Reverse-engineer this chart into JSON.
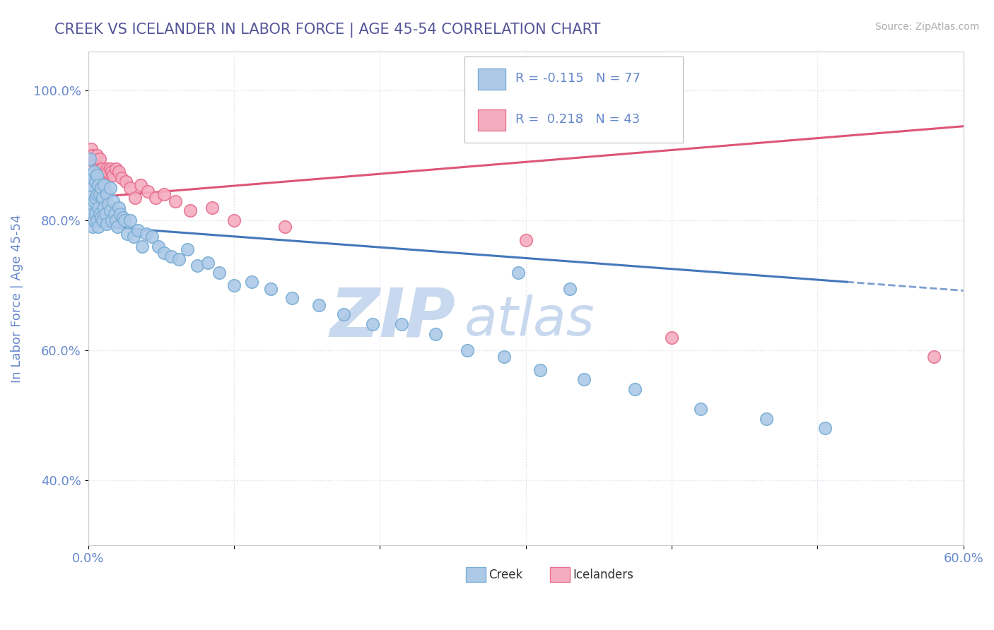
{
  "title": "CREEK VS ICELANDER IN LABOR FORCE | AGE 45-54 CORRELATION CHART",
  "source": "Source: ZipAtlas.com",
  "ylabel": "In Labor Force | Age 45-54",
  "xlim": [
    0.0,
    0.6
  ],
  "ylim": [
    0.3,
    1.06
  ],
  "xticks": [
    0.0,
    0.1,
    0.2,
    0.3,
    0.4,
    0.5,
    0.6
  ],
  "xticklabels": [
    "0.0%",
    "",
    "",
    "",
    "",
    "",
    "60.0%"
  ],
  "yticks": [
    0.4,
    0.6,
    0.8,
    1.0
  ],
  "yticklabels": [
    "40.0%",
    "60.0%",
    "80.0%",
    "100.0%"
  ],
  "creek_color": "#adc9e8",
  "icelander_color": "#f4adc0",
  "creek_edge": "#7aafd4",
  "icelander_edge": "#e87090",
  "trend_creek_color": "#4477bb",
  "trend_icelander_color": "#dd5577",
  "background_color": "#ffffff",
  "title_color": "#555599",
  "axis_color": "#6688cc",
  "grid_color": "#ddddee",
  "watermark_zip_color": "#c8d8ee",
  "watermark_atlas_color": "#c8d8ee",
  "creek_trend_y0": 0.792,
  "creek_trend_y1": 0.692,
  "icel_trend_y0": 0.835,
  "icel_trend_y1": 0.945,
  "creek_x": [
    0.001,
    0.001,
    0.002,
    0.002,
    0.002,
    0.003,
    0.003,
    0.003,
    0.004,
    0.004,
    0.004,
    0.005,
    0.005,
    0.005,
    0.006,
    0.006,
    0.006,
    0.007,
    0.007,
    0.007,
    0.008,
    0.008,
    0.009,
    0.009,
    0.01,
    0.01,
    0.011,
    0.011,
    0.012,
    0.013,
    0.013,
    0.014,
    0.015,
    0.015,
    0.016,
    0.017,
    0.018,
    0.019,
    0.02,
    0.021,
    0.022,
    0.024,
    0.025,
    0.027,
    0.029,
    0.031,
    0.034,
    0.037,
    0.04,
    0.044,
    0.048,
    0.052,
    0.057,
    0.062,
    0.068,
    0.075,
    0.082,
    0.09,
    0.1,
    0.112,
    0.125,
    0.14,
    0.158,
    0.175,
    0.195,
    0.215,
    0.238,
    0.26,
    0.285,
    0.31,
    0.34,
    0.375,
    0.42,
    0.465,
    0.295,
    0.33,
    0.505
  ],
  "creek_y": [
    0.895,
    0.84,
    0.87,
    0.82,
    0.855,
    0.865,
    0.81,
    0.79,
    0.875,
    0.83,
    0.8,
    0.835,
    0.86,
    0.81,
    0.87,
    0.84,
    0.8,
    0.855,
    0.82,
    0.79,
    0.84,
    0.81,
    0.85,
    0.805,
    0.835,
    0.8,
    0.855,
    0.82,
    0.81,
    0.84,
    0.795,
    0.825,
    0.815,
    0.85,
    0.8,
    0.83,
    0.81,
    0.8,
    0.79,
    0.82,
    0.81,
    0.805,
    0.8,
    0.78,
    0.8,
    0.775,
    0.785,
    0.76,
    0.78,
    0.775,
    0.76,
    0.75,
    0.745,
    0.74,
    0.755,
    0.73,
    0.735,
    0.72,
    0.7,
    0.705,
    0.695,
    0.68,
    0.67,
    0.655,
    0.64,
    0.64,
    0.625,
    0.6,
    0.59,
    0.57,
    0.555,
    0.54,
    0.51,
    0.495,
    0.72,
    0.695,
    0.48
  ],
  "icel_x": [
    0.001,
    0.001,
    0.002,
    0.002,
    0.003,
    0.003,
    0.004,
    0.004,
    0.005,
    0.005,
    0.006,
    0.006,
    0.007,
    0.007,
    0.008,
    0.008,
    0.009,
    0.01,
    0.011,
    0.012,
    0.013,
    0.014,
    0.015,
    0.016,
    0.017,
    0.019,
    0.021,
    0.023,
    0.026,
    0.029,
    0.032,
    0.036,
    0.041,
    0.046,
    0.052,
    0.06,
    0.07,
    0.085,
    0.1,
    0.135,
    0.3,
    0.4,
    0.58
  ],
  "icel_y": [
    0.9,
    0.87,
    0.91,
    0.87,
    0.9,
    0.87,
    0.89,
    0.86,
    0.895,
    0.87,
    0.9,
    0.86,
    0.88,
    0.85,
    0.895,
    0.87,
    0.88,
    0.88,
    0.87,
    0.875,
    0.88,
    0.875,
    0.88,
    0.875,
    0.87,
    0.88,
    0.875,
    0.865,
    0.86,
    0.85,
    0.835,
    0.855,
    0.845,
    0.835,
    0.84,
    0.83,
    0.815,
    0.82,
    0.8,
    0.79,
    0.77,
    0.62,
    0.59
  ]
}
